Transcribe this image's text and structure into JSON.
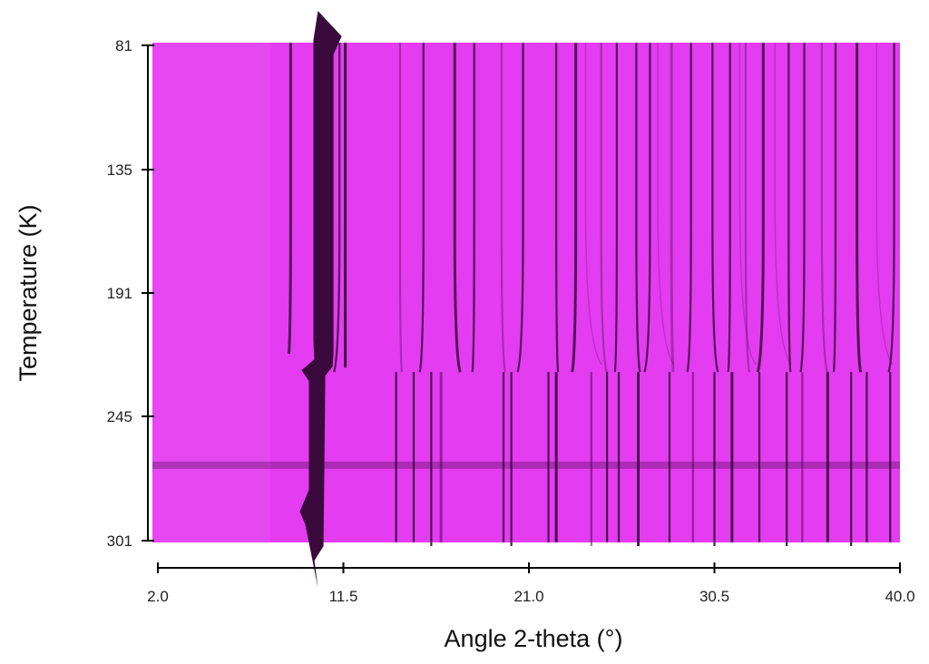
{
  "chart_data": {
    "type": "heatmap",
    "xlabel": "Angle 2-theta (°)",
    "ylabel": "Temperature (K)",
    "xlim": [
      2.0,
      40.0
    ],
    "ylim": [
      81,
      301
    ],
    "x_ticks": [
      "2.0",
      "11.5",
      "21.0",
      "30.5",
      "40.0"
    ],
    "y_ticks": [
      "81",
      "135",
      "191",
      "245",
      "301"
    ],
    "background_color": "#e43cf1",
    "line_color": "#3a0a3d",
    "phase_transition_temperature": 226,
    "horizontal_band_temperature": 267,
    "main_peak": {
      "x": 10.2,
      "width": 0.75
    },
    "low_temperature_peaks": [
      8.8,
      10.2,
      11.3,
      14.4,
      15.6,
      17.2,
      18.2,
      19.6,
      20.7,
      22.4,
      23.4,
      24.7,
      25.5,
      26.5,
      27.2,
      28.3,
      29.3,
      30.4,
      31.3,
      32.1,
      33.0,
      34.3,
      35.1,
      36.0,
      36.7,
      37.8,
      39.7
    ],
    "high_temperature_peaks": [
      10.2,
      14.2,
      15.1,
      16.0,
      16.5,
      19.7,
      20.1,
      22.0,
      22.4,
      24.2,
      25.0,
      25.6,
      26.6,
      28.2,
      29.4,
      30.5,
      31.4,
      32.8,
      34.2,
      35.0,
      36.3,
      37.5,
      38.3,
      39.5
    ]
  }
}
